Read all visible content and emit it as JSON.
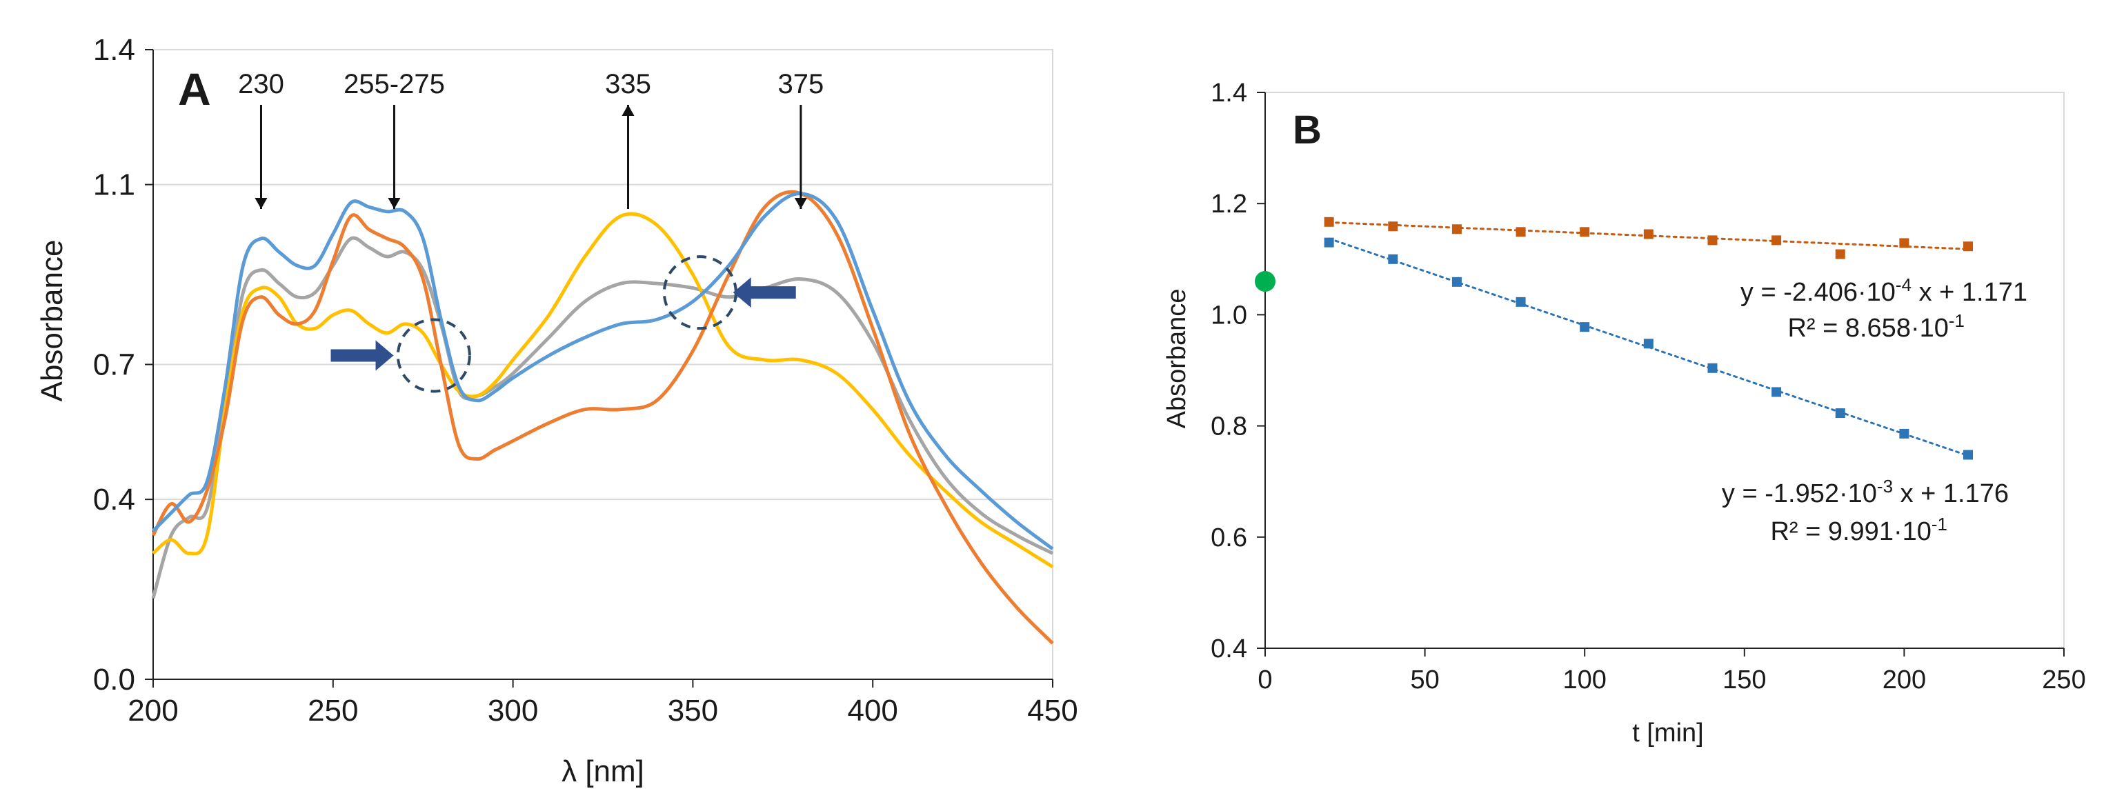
{
  "chart_data": [
    {
      "panel_label": "A",
      "type": "line",
      "xlabel": "λ [nm]",
      "ylabel": "Absorbance",
      "xlim": [
        200,
        450
      ],
      "ylim": [
        0.0,
        1.4
      ],
      "xticks": [
        "200",
        "250",
        "300",
        "350",
        "400",
        "450"
      ],
      "yticks": [
        "0.0",
        "0.4",
        "0.7",
        "1.1",
        "1.4"
      ],
      "ytick_values": [
        0.0,
        0.4,
        0.7,
        1.1,
        1.4
      ],
      "grid": "horizontal",
      "colors": {
        "blue": "#5b9bd5",
        "orange": "#ed7d31",
        "gray": "#a5a5a5",
        "yellow": "#ffc000",
        "marker": "#2f4f8f"
      },
      "annotations": [
        {
          "label": "230",
          "x": 230,
          "direction": "down",
          "value": 1.05
        },
        {
          "label": "255-275",
          "x": 267,
          "direction": "down",
          "value": 1.08
        },
        {
          "label": "335",
          "x": 332,
          "direction": "up",
          "value": 1.1
        },
        {
          "label": "375",
          "x": 380,
          "direction": "down",
          "value": 1.1
        }
      ],
      "circles": [
        {
          "x": 278,
          "y": 0.72
        },
        {
          "x": 352,
          "y": 0.86
        }
      ],
      "block_arrows": [
        {
          "x": 258,
          "y": 0.72,
          "direction": "right"
        },
        {
          "x": 370,
          "y": 0.86,
          "direction": "left"
        }
      ],
      "series": [
        {
          "name": "blue",
          "color": "#5b9bd5",
          "x": [
            200,
            205,
            210,
            215,
            220,
            225,
            230,
            235,
            240,
            245,
            250,
            255,
            260,
            265,
            270,
            275,
            280,
            285,
            290,
            295,
            300,
            310,
            320,
            330,
            340,
            350,
            360,
            370,
            380,
            390,
            400,
            410,
            420,
            430,
            440,
            450
          ],
          "y": [
            0.33,
            0.37,
            0.41,
            0.44,
            0.65,
            0.92,
            0.98,
            0.95,
            0.92,
            0.92,
            0.99,
            1.06,
            1.05,
            1.04,
            1.04,
            0.98,
            0.8,
            0.65,
            0.62,
            0.64,
            0.67,
            0.72,
            0.76,
            0.79,
            0.8,
            0.84,
            0.92,
            1.03,
            1.08,
            1.02,
            0.82,
            0.62,
            0.5,
            0.42,
            0.35,
            0.29
          ]
        },
        {
          "name": "orange",
          "color": "#ed7d31",
          "x": [
            200,
            205,
            210,
            215,
            220,
            225,
            230,
            235,
            240,
            245,
            250,
            255,
            260,
            265,
            270,
            275,
            280,
            285,
            290,
            295,
            300,
            310,
            320,
            330,
            340,
            350,
            360,
            370,
            380,
            390,
            400,
            410,
            420,
            430,
            440,
            450
          ],
          "y": [
            0.32,
            0.39,
            0.35,
            0.42,
            0.58,
            0.8,
            0.85,
            0.81,
            0.79,
            0.82,
            0.93,
            1.03,
            1.0,
            0.98,
            0.96,
            0.89,
            0.7,
            0.52,
            0.49,
            0.51,
            0.53,
            0.57,
            0.6,
            0.6,
            0.62,
            0.73,
            0.9,
            1.05,
            1.08,
            0.99,
            0.78,
            0.55,
            0.39,
            0.26,
            0.16,
            0.08
          ]
        },
        {
          "name": "gray",
          "color": "#a5a5a5",
          "x": [
            200,
            205,
            210,
            215,
            220,
            225,
            230,
            235,
            240,
            245,
            250,
            255,
            260,
            265,
            270,
            275,
            280,
            285,
            290,
            295,
            300,
            310,
            320,
            330,
            340,
            350,
            360,
            370,
            380,
            390,
            400,
            410,
            420,
            430,
            440,
            450
          ],
          "y": [
            0.18,
            0.32,
            0.36,
            0.38,
            0.61,
            0.86,
            0.91,
            0.88,
            0.85,
            0.86,
            0.92,
            0.98,
            0.96,
            0.94,
            0.95,
            0.91,
            0.79,
            0.64,
            0.63,
            0.65,
            0.68,
            0.76,
            0.84,
            0.88,
            0.88,
            0.87,
            0.85,
            0.87,
            0.89,
            0.86,
            0.75,
            0.58,
            0.45,
            0.37,
            0.32,
            0.28
          ]
        },
        {
          "name": "yellow",
          "color": "#ffc000",
          "x": [
            200,
            205,
            210,
            215,
            220,
            225,
            230,
            235,
            240,
            245,
            250,
            255,
            260,
            265,
            270,
            275,
            280,
            285,
            290,
            295,
            300,
            310,
            320,
            330,
            340,
            350,
            360,
            370,
            380,
            390,
            400,
            410,
            420,
            430,
            440,
            450
          ],
          "y": [
            0.28,
            0.31,
            0.28,
            0.32,
            0.6,
            0.82,
            0.87,
            0.85,
            0.79,
            0.78,
            0.81,
            0.82,
            0.79,
            0.77,
            0.79,
            0.77,
            0.7,
            0.64,
            0.63,
            0.66,
            0.71,
            0.81,
            0.94,
            1.03,
            1.01,
            0.9,
            0.74,
            0.71,
            0.71,
            0.68,
            0.6,
            0.5,
            0.42,
            0.35,
            0.3,
            0.25
          ]
        }
      ]
    },
    {
      "panel_label": "B",
      "type": "scatter",
      "xlabel": "t [min]",
      "ylabel": "Absorbance",
      "xlim": [
        0,
        250
      ],
      "ylim": [
        0.4,
        1.4
      ],
      "xticks": [
        "0",
        "50",
        "100",
        "150",
        "200",
        "250"
      ],
      "yticks": [
        "0.4",
        "0.6",
        "0.8",
        "1.0",
        "1.2",
        "1.4"
      ],
      "ytick_values": [
        0.4,
        0.6,
        0.8,
        1.0,
        1.2,
        1.4
      ],
      "grid": "none",
      "initial_point": {
        "x": 0,
        "y": 1.06,
        "color": "#00b050"
      },
      "series": [
        {
          "name": "orange",
          "color": "#c55a11",
          "x": [
            20,
            40,
            60,
            80,
            100,
            120,
            140,
            160,
            180,
            200,
            220
          ],
          "y": [
            1.167,
            1.159,
            1.154,
            1.149,
            1.149,
            1.145,
            1.134,
            1.134,
            1.109,
            1.129,
            1.123
          ],
          "trend": {
            "slope": -0.0002406,
            "intercept": 1.171,
            "equation": "y = -2.406·10",
            "eq_exp": "-4",
            "eq_rest": " x + 1.171",
            "r2": "R² = 8.658·10",
            "r2_exp": "-1"
          }
        },
        {
          "name": "blue",
          "color": "#2e75b6",
          "x": [
            20,
            40,
            60,
            80,
            100,
            120,
            140,
            160,
            180,
            200,
            220
          ],
          "y": [
            1.13,
            1.1,
            1.059,
            1.023,
            0.978,
            0.948,
            0.904,
            0.861,
            0.823,
            0.786,
            0.748
          ],
          "trend": {
            "slope": -0.001952,
            "intercept": 1.176,
            "equation": "y = -1.952·10",
            "eq_exp": "-3",
            "eq_rest": " x + 1.176",
            "r2": "R² = 9.991·10",
            "r2_exp": "-1"
          }
        }
      ]
    }
  ]
}
